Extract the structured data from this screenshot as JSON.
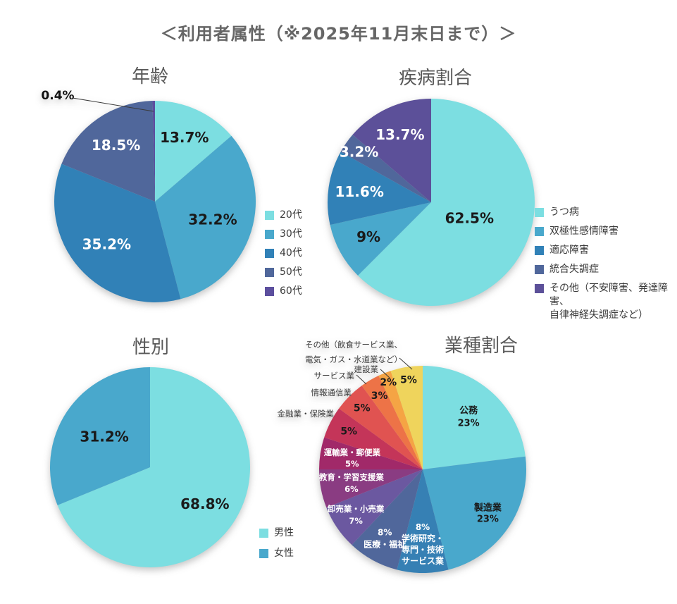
{
  "page_title": "＜利用者属性（※2025年11月末日まで）＞",
  "chart_data": [
    {
      "id": "age",
      "type": "pie",
      "title": "年齢",
      "slices": [
        {
          "name": "20代",
          "value": 13.7,
          "display": "13.7%",
          "color": "#7CDEE1",
          "label_color": "#1a1a1a",
          "label_lines": [
            "13.7%"
          ]
        },
        {
          "name": "30代",
          "value": 32.2,
          "display": "32.2%",
          "color": "#49A8CC",
          "label_color": "#1a1a1a",
          "label_lines": [
            "32.2%"
          ]
        },
        {
          "name": "40代",
          "value": 35.2,
          "display": "35.2%",
          "color": "#3181B7",
          "label_color": "#ffffff",
          "label_lines": [
            "35.2%"
          ]
        },
        {
          "name": "50代",
          "value": 18.5,
          "display": "18.5%",
          "color": "#50679B",
          "label_color": "#ffffff",
          "label_lines": [
            "18.5%"
          ]
        },
        {
          "name": "60代",
          "value": 0.4,
          "display": "0.4%",
          "color": "#5C4F9E",
          "label_color": "#111111",
          "label_lines": [],
          "outside_lines": [
            "0.4%"
          ]
        }
      ],
      "legend": [
        {
          "lines": [
            "20代"
          ],
          "color": "#7CDEE1"
        },
        {
          "lines": [
            "30代"
          ],
          "color": "#49A8CC"
        },
        {
          "lines": [
            "40代"
          ],
          "color": "#3181B7"
        },
        {
          "lines": [
            "50代"
          ],
          "color": "#50679B"
        },
        {
          "lines": [
            "60代"
          ],
          "color": "#5C4F9E"
        }
      ]
    },
    {
      "id": "disease",
      "type": "pie",
      "title": "疾病割合",
      "slices": [
        {
          "name": "うつ病",
          "value": 62.5,
          "display": "62.5%",
          "color": "#7CDEE1",
          "label_color": "#1a1a1a",
          "label_lines": [
            "62.5%"
          ]
        },
        {
          "name": "双極性感情障害",
          "value": 9,
          "display": "9%",
          "color": "#49A8CC",
          "label_color": "#1a1a1a",
          "label_lines": [
            "9%"
          ]
        },
        {
          "name": "適応障害",
          "value": 11.6,
          "display": "11.6%",
          "color": "#3181B7",
          "label_color": "#ffffff",
          "label_lines": [
            "11.6%"
          ]
        },
        {
          "name": "統合失調症",
          "value": 3.2,
          "display": "3.2%",
          "color": "#50679B",
          "label_color": "#ffffff",
          "label_lines": [
            "3.2%"
          ]
        },
        {
          "name": "その他（不安障害、発達障害、自律神経失調症など）",
          "value": 13.7,
          "display": "13.7%",
          "color": "#5C5099",
          "label_color": "#ffffff",
          "label_lines": [
            "13.7%"
          ]
        }
      ],
      "legend": [
        {
          "lines": [
            "うつ病"
          ],
          "color": "#7CDEE1"
        },
        {
          "lines": [
            "双極性感情障害"
          ],
          "color": "#49A8CC"
        },
        {
          "lines": [
            "適応障害"
          ],
          "color": "#3181B7"
        },
        {
          "lines": [
            "統合失調症"
          ],
          "color": "#50679B"
        },
        {
          "lines": [
            "その他（不安障害、発達障害、",
            "自律神経失調症など）"
          ],
          "color": "#5C5099"
        }
      ]
    },
    {
      "id": "gender",
      "type": "pie",
      "title": "性別",
      "slices": [
        {
          "name": "男性",
          "value": 68.8,
          "display": "68.8%",
          "color": "#7CDEE1",
          "label_color": "#1a1a1a",
          "label_lines": [
            "68.8%"
          ]
        },
        {
          "name": "女性",
          "value": 31.2,
          "display": "31.2%",
          "color": "#49A8CC",
          "label_color": "#1a1a1a",
          "label_lines": [
            "31.2%"
          ]
        }
      ],
      "legend": [
        {
          "lines": [
            "男性"
          ],
          "color": "#7CDEE1"
        },
        {
          "lines": [
            "女性"
          ],
          "color": "#49A8CC"
        }
      ]
    },
    {
      "id": "industry",
      "type": "pie",
      "title": "業種割合",
      "slices": [
        {
          "name": "公務",
          "value": 23,
          "display": "23%",
          "color": "#7CDEE1",
          "label_color": "#1a1a1a",
          "label_lines": [
            "公務",
            "23%"
          ]
        },
        {
          "name": "製造業",
          "value": 23,
          "display": "23%",
          "color": "#49A8CC",
          "label_color": "#1a1a1a",
          "label_lines": [
            "製造業",
            "23%"
          ]
        },
        {
          "name": "学術研究・専門・技術サービス業",
          "value": 8,
          "display": "8%",
          "color": "#3680B4",
          "label_color": "#ffffff",
          "label_lines": [
            "8%",
            "学術研究・",
            "専門・技術",
            "サービス業"
          ]
        },
        {
          "name": "医療・福祉",
          "value": 8,
          "display": "8%",
          "color": "#50679B",
          "label_color": "#ffffff",
          "label_lines": [
            "8%",
            "医療・福祉"
          ]
        },
        {
          "name": "卸売業・小売業",
          "value": 7,
          "display": "7%",
          "color": "#6B58A0",
          "label_color": "#ffffff",
          "label_lines": [
            "卸売業・小売業",
            "7%"
          ]
        },
        {
          "name": "教育・学習支援業",
          "value": 6,
          "display": "6%",
          "color": "#8A3C82",
          "label_color": "#ffffff",
          "label_lines": [
            "教育・学習支援業",
            "6%"
          ]
        },
        {
          "name": "運輸業・郵便業",
          "value": 5,
          "display": "5%",
          "color": "#A12969",
          "label_color": "#ffffff",
          "label_lines": [
            "運輸業・郵便業",
            "5%"
          ]
        },
        {
          "name": "金融業・保険業",
          "value": 5,
          "display": "5%",
          "color": "#C43559",
          "label_color": "#1a1a1a",
          "label_lines": [
            "5%"
          ],
          "outside_lines": [
            "金融業・保険業"
          ]
        },
        {
          "name": "情報通信業",
          "value": 5,
          "display": "5%",
          "color": "#E05351",
          "label_color": "#1a1a1a",
          "label_lines": [
            "5%"
          ],
          "outside_lines": [
            "情報通信業"
          ]
        },
        {
          "name": "サービス業",
          "value": 3,
          "display": "3%",
          "color": "#ED7347",
          "label_color": "#1a1a1a",
          "label_lines": [
            "3%"
          ],
          "outside_lines": [
            "サービス業"
          ]
        },
        {
          "name": "建設業",
          "value": 2,
          "display": "2%",
          "color": "#F5A444",
          "label_color": "#1a1a1a",
          "label_lines": [
            "2%"
          ],
          "outside_lines": [
            "建設業"
          ]
        },
        {
          "name": "その他（飲食サービス業、電気・ガス・水道業など）",
          "value": 5,
          "display": "5%",
          "color": "#EFD45C",
          "label_color": "#1a1a1a",
          "label_lines": [
            "5%"
          ],
          "outside_lines": [
            "その他（飲食サービス業、",
            "電気・ガス・水道業など）"
          ]
        }
      ]
    }
  ]
}
